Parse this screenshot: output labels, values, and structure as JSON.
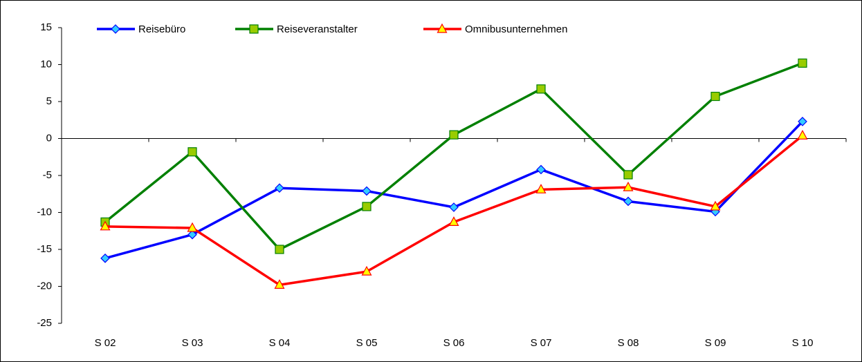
{
  "chart_data": {
    "type": "line",
    "categories": [
      "S 02",
      "S 03",
      "S 04",
      "S 05",
      "S 06",
      "S 07",
      "S 08",
      "S 09",
      "S 10"
    ],
    "series": [
      {
        "name": "Reisebüro",
        "color": "#0000ff",
        "marker": "diamond",
        "marker_fill": "#33ccff",
        "values": [
          -16.2,
          -13,
          -6.7,
          -7.1,
          -9.3,
          -4.2,
          -8.5,
          -9.9,
          2.3
        ]
      },
      {
        "name": "Reiseveranstalter",
        "color": "#008000",
        "marker": "square",
        "marker_fill": "#99cc00",
        "values": [
          -11.3,
          -1.8,
          -15.0,
          -9.2,
          0.5,
          6.7,
          -4.9,
          5.7,
          10.2
        ]
      },
      {
        "name": "Omnibusunternehmen",
        "color": "#ff0000",
        "marker": "triangle",
        "marker_fill": "#ffff00",
        "values": [
          -11.9,
          -12.1,
          -19.8,
          -18.0,
          -11.3,
          -6.9,
          -6.6,
          -9.2,
          0.4
        ]
      }
    ],
    "ylim": [
      -25,
      15
    ],
    "yticks": [
      -25,
      -20,
      -15,
      -10,
      -5,
      0,
      5,
      10,
      15
    ],
    "grid": false,
    "legend": "top"
  }
}
